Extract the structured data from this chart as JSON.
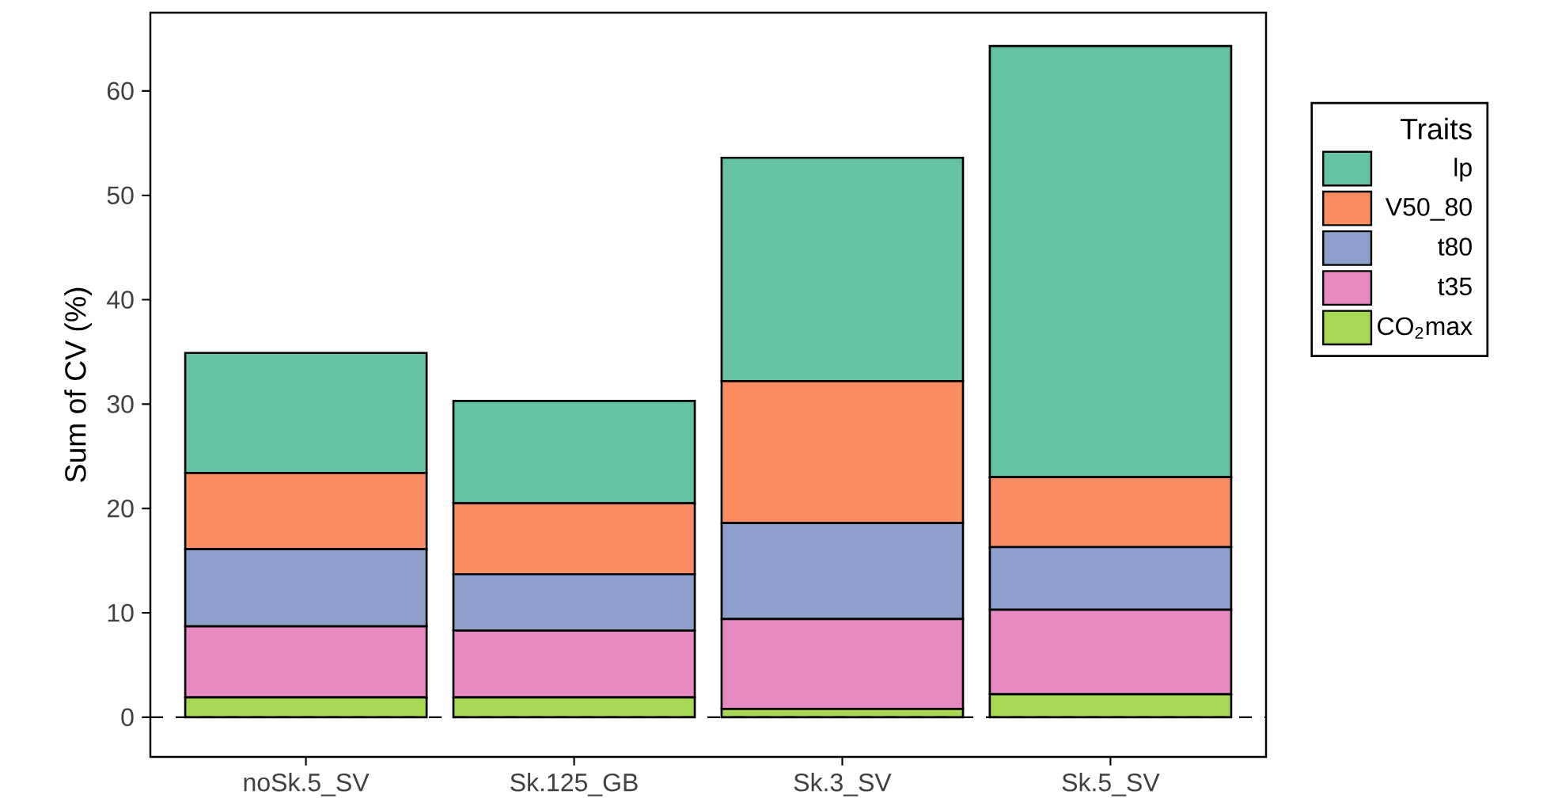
{
  "chart_data": {
    "type": "bar",
    "stacked": true,
    "ylabel": "Sum of CV (%)",
    "legend_title": "Traits",
    "legend": "right",
    "categories": [
      "noSk.5_SV",
      "Sk.125_GB",
      "Sk.3_SV",
      "Sk.5_SV"
    ],
    "ylim": [
      -3.8,
      67.5
    ],
    "yticks": [
      0,
      10,
      20,
      30,
      40,
      50,
      60
    ],
    "ref_lines": [
      {
        "axis": "y",
        "value": 0,
        "color": "#000000",
        "line_style": "dashed"
      }
    ],
    "series": [
      {
        "name": "CO$_{2}$max",
        "color": "#a6d854",
        "values": [
          1.9,
          1.9,
          0.8,
          2.2
        ]
      },
      {
        "name": "t35",
        "color": "#e78ac3",
        "values": [
          6.8,
          6.4,
          8.6,
          8.1
        ]
      },
      {
        "name": "t80",
        "color": "#8da0cb",
        "values": [
          7.4,
          5.4,
          9.2,
          6.0
        ]
      },
      {
        "name": "V50_80",
        "color": "#fc8d62",
        "values": [
          7.3,
          6.8,
          13.6,
          6.7
        ]
      },
      {
        "name": "lp",
        "color": "#66c2a5",
        "values": [
          11.5,
          9.8,
          21.4,
          41.3
        ]
      }
    ]
  }
}
